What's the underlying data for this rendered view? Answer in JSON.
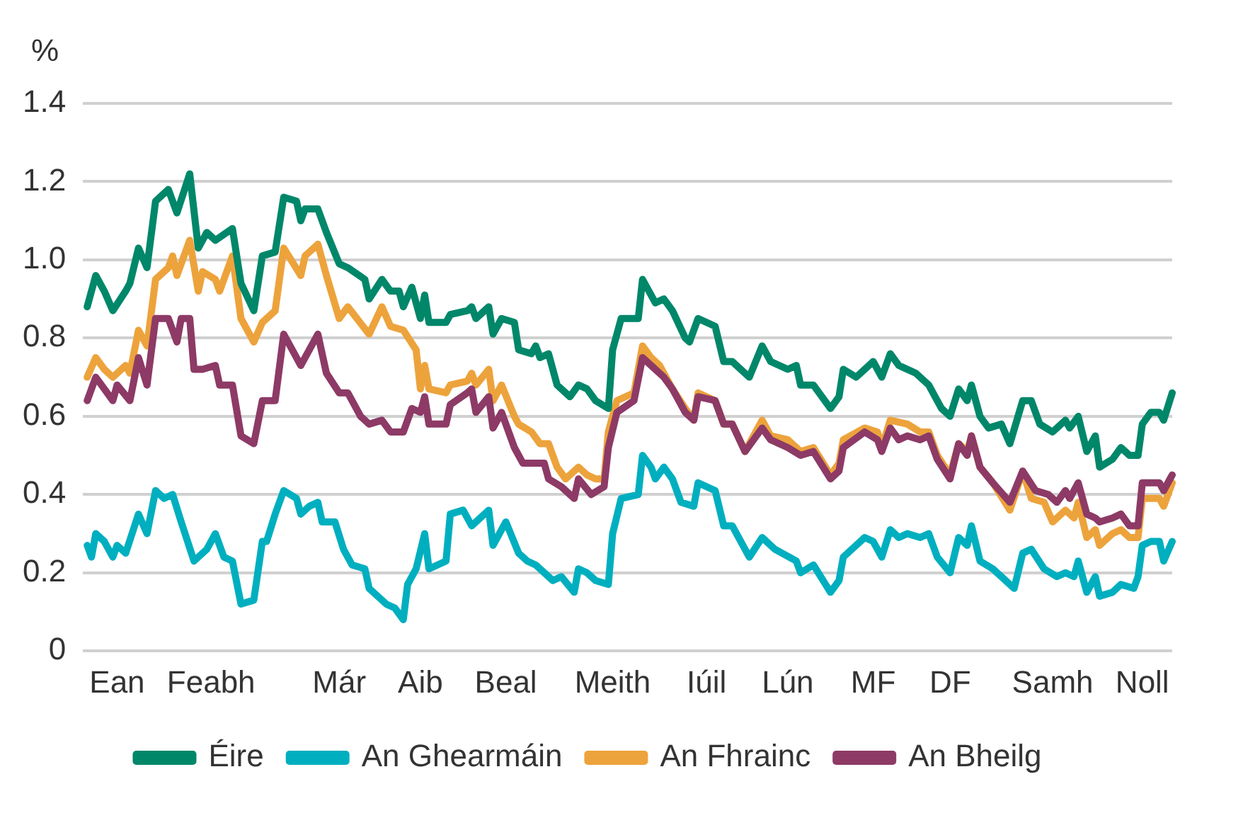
{
  "chart_data": {
    "type": "line",
    "ylabel": "%",
    "categories": [
      null,
      null,
      null,
      null,
      null,
      null,
      null,
      null,
      "Ean",
      null,
      null,
      null,
      null,
      null,
      null,
      null,
      null,
      null,
      null,
      null,
      null,
      null,
      null,
      null,
      null,
      null,
      null,
      null,
      null,
      null,
      "Feabh",
      null,
      null,
      null,
      null,
      null,
      null,
      null,
      null,
      null,
      null,
      null,
      null,
      null,
      null,
      null,
      null,
      null,
      null,
      null,
      null,
      null,
      null,
      null,
      null,
      null,
      null,
      null,
      null,
      null,
      "Már",
      null,
      null,
      null,
      null,
      null,
      null,
      null,
      null,
      null,
      null,
      null,
      null,
      null,
      null,
      null,
      null,
      null,
      null,
      "Aib",
      null,
      null,
      null,
      null,
      null,
      null,
      null,
      null,
      null,
      null,
      null,
      null,
      null,
      null,
      null,
      null,
      null,
      null,
      null,
      "Beal",
      null,
      null,
      null,
      null,
      null,
      null,
      null,
      null,
      null,
      null,
      null,
      null,
      null,
      null,
      null,
      null,
      null,
      null,
      null,
      null,
      null,
      null,
      null,
      null,
      "Meith",
      null,
      null,
      null,
      null,
      null,
      null,
      null,
      null,
      null,
      null,
      null,
      null,
      null,
      null,
      null,
      null,
      null,
      null,
      null,
      null,
      null,
      "Iúil",
      null,
      null,
      null,
      null,
      null,
      null,
      null,
      null,
      null,
      null,
      null,
      null,
      null,
      null,
      null,
      null,
      null,
      null,
      "Lún",
      null,
      null,
      null,
      null,
      null,
      null,
      null,
      null,
      null,
      null,
      null,
      null,
      null,
      null,
      null,
      null,
      null,
      null,
      null,
      "MF",
      null,
      null,
      null,
      null,
      null,
      null,
      null,
      null,
      null,
      null,
      null,
      null,
      null,
      null,
      null,
      null,
      null,
      "DF",
      null,
      null,
      null,
      null,
      null,
      null,
      null,
      null,
      null,
      null,
      null,
      null,
      null,
      null,
      null,
      null,
      null,
      null,
      null,
      null,
      null,
      null,
      null,
      "Samh",
      null,
      null,
      null,
      null,
      null,
      null,
      null,
      null,
      null,
      null,
      null,
      null,
      null,
      null,
      null,
      null,
      null,
      null,
      null,
      null,
      "Noll",
      null,
      null,
      null,
      null,
      null,
      null,
      null
    ],
    "ylim": [
      0,
      1.4
    ],
    "yticks": [
      0,
      0.2,
      0.4,
      0.6,
      0.8,
      {
        "value": 1,
        "label": "1.0"
      },
      1.2,
      1.4
    ],
    "grid": "y",
    "legend": "bottom",
    "marker": "none",
    "line_style": "solid",
    "series": [
      {
        "name": "Éire",
        "color": "#00876a",
        "values": [
          null,
          0.88,
          null,
          0.96,
          null,
          0.92,
          null,
          0.87,
          null,
          null,
          0.92,
          0.94,
          null,
          1.03,
          null,
          0.98,
          null,
          1.15,
          null,
          null,
          1.18,
          null,
          1.12,
          null,
          null,
          1.22,
          null,
          1.03,
          null,
          1.07,
          null,
          1.05,
          null,
          null,
          null,
          1.08,
          null,
          0.94,
          null,
          null,
          0.87,
          null,
          1.01,
          null,
          null,
          1.02,
          null,
          1.16,
          null,
          null,
          1.15,
          1.1,
          1.13,
          null,
          null,
          1.13,
          null,
          1.07,
          null,
          null,
          0.99,
          null,
          0.98,
          null,
          null,
          null,
          0.95,
          0.9,
          null,
          null,
          0.95,
          null,
          0.92,
          null,
          0.92,
          0.88,
          null,
          0.93,
          null,
          0.85,
          0.91,
          0.84,
          null,
          null,
          null,
          0.84,
          0.86,
          null,
          null,
          null,
          0.87,
          0.88,
          0.85,
          null,
          null,
          0.88,
          0.81,
          null,
          0.85,
          null,
          null,
          0.84,
          0.77,
          null,
          null,
          0.76,
          0.78,
          0.75,
          null,
          0.76,
          null,
          0.68,
          null,
          null,
          0.65,
          null,
          0.68,
          null,
          0.67,
          null,
          0.64,
          null,
          null,
          0.62,
          0.77,
          null,
          0.85,
          null,
          null,
          null,
          0.85,
          0.95,
          0.93,
          null,
          0.89,
          null,
          0.9,
          null,
          0.87,
          null,
          null,
          0.8,
          0.79,
          null,
          0.85,
          null,
          null,
          null,
          0.83,
          null,
          0.74,
          null,
          0.74,
          null,
          null,
          null,
          0.7,
          null,
          null,
          0.78,
          null,
          0.74,
          null,
          null,
          null,
          0.72,
          null,
          0.73,
          0.68,
          null,
          null,
          0.68,
          null,
          null,
          null,
          0.62,
          null,
          0.65,
          0.72,
          null,
          null,
          0.7,
          null,
          null,
          null,
          0.74,
          null,
          0.7,
          null,
          0.76,
          null,
          0.73,
          null,
          null,
          null,
          0.71,
          null,
          null,
          0.68,
          null,
          null,
          0.62,
          null,
          0.6,
          null,
          0.67,
          null,
          0.64,
          0.68,
          null,
          0.6,
          null,
          0.57,
          null,
          null,
          0.58,
          null,
          0.53,
          null,
          null,
          0.64,
          null,
          0.64,
          null,
          0.58,
          null,
          null,
          0.56,
          null,
          null,
          0.59,
          0.57,
          null,
          0.6,
          null,
          0.51,
          null,
          0.55,
          0.47,
          null,
          null,
          0.49,
          null,
          0.52,
          null,
          0.5,
          null,
          0.5,
          0.58,
          null,
          0.61,
          null,
          0.61,
          0.59,
          null,
          0.66
        ]
      },
      {
        "name": "An Ghearmáin",
        "color": "#00afbf",
        "values": [
          null,
          0.27,
          0.24,
          0.3,
          null,
          0.28,
          null,
          0.24,
          0.27,
          null,
          0.25,
          null,
          null,
          0.35,
          null,
          0.3,
          null,
          0.41,
          null,
          0.39,
          null,
          0.4,
          null,
          0.33,
          null,
          null,
          0.23,
          null,
          null,
          0.26,
          null,
          0.3,
          null,
          0.24,
          null,
          0.23,
          null,
          0.12,
          null,
          null,
          0.13,
          null,
          0.28,
          0.28,
          null,
          0.35,
          null,
          0.41,
          null,
          null,
          0.39,
          0.35,
          null,
          0.37,
          null,
          0.38,
          0.33,
          null,
          null,
          0.33,
          null,
          0.26,
          null,
          0.22,
          null,
          null,
          0.21,
          0.16,
          null,
          null,
          null,
          0.12,
          null,
          0.11,
          null,
          0.08,
          0.17,
          null,
          0.21,
          null,
          0.3,
          0.21,
          null,
          null,
          null,
          0.23,
          0.35,
          null,
          null,
          0.36,
          null,
          0.32,
          null,
          null,
          null,
          0.36,
          0.27,
          null,
          null,
          0.33,
          null,
          null,
          0.25,
          null,
          0.23,
          null,
          0.22,
          null,
          0.2,
          null,
          0.18,
          null,
          0.19,
          null,
          null,
          0.15,
          0.21,
          null,
          0.2,
          null,
          0.18,
          null,
          null,
          0.17,
          0.3,
          null,
          0.39,
          null,
          null,
          null,
          0.4,
          0.5,
          null,
          0.47,
          0.44,
          null,
          0.47,
          null,
          0.44,
          null,
          0.38,
          null,
          null,
          0.37,
          0.43,
          null,
          null,
          null,
          0.41,
          null,
          0.32,
          null,
          0.32,
          null,
          null,
          null,
          0.24,
          null,
          null,
          0.29,
          null,
          null,
          0.26,
          null,
          null,
          null,
          null,
          0.23,
          0.2,
          null,
          null,
          0.22,
          null,
          null,
          null,
          0.15,
          null,
          0.18,
          0.24,
          null,
          null,
          null,
          null,
          0.29,
          null,
          0.28,
          null,
          0.24,
          null,
          0.31,
          null,
          0.29,
          null,
          0.3,
          null,
          null,
          0.29,
          null,
          0.3,
          null,
          0.24,
          null,
          null,
          0.2,
          null,
          0.29,
          null,
          0.27,
          0.32,
          null,
          0.23,
          null,
          null,
          0.21,
          null,
          null,
          0.18,
          null,
          0.16,
          null,
          0.25,
          null,
          0.26,
          null,
          null,
          0.21,
          null,
          null,
          0.19,
          null,
          0.2,
          null,
          0.19,
          0.23,
          null,
          0.15,
          null,
          0.19,
          0.14,
          null,
          null,
          0.15,
          null,
          0.17,
          null,
          null,
          0.16,
          0.19,
          0.27,
          null,
          0.28,
          null,
          0.28,
          0.23,
          null,
          0.28
        ]
      },
      {
        "name": "An Fhrainc",
        "color": "#eda33c",
        "values": [
          null,
          0.7,
          null,
          0.75,
          null,
          0.72,
          null,
          0.7,
          null,
          null,
          0.73,
          0.71,
          null,
          0.82,
          null,
          0.78,
          null,
          0.95,
          null,
          null,
          0.98,
          1.01,
          0.96,
          null,
          null,
          1.05,
          null,
          0.92,
          0.97,
          null,
          null,
          0.95,
          0.92,
          null,
          null,
          1.01,
          null,
          0.85,
          null,
          null,
          0.79,
          null,
          0.84,
          null,
          null,
          0.87,
          null,
          1.03,
          null,
          null,
          null,
          0.96,
          1.01,
          null,
          null,
          1.04,
          null,
          0.96,
          null,
          null,
          0.85,
          null,
          0.88,
          null,
          null,
          null,
          null,
          0.81,
          null,
          null,
          0.88,
          null,
          0.83,
          null,
          null,
          0.82,
          null,
          null,
          0.77,
          0.67,
          0.73,
          0.67,
          null,
          null,
          null,
          0.66,
          0.68,
          null,
          null,
          null,
          0.69,
          0.71,
          0.68,
          null,
          null,
          0.72,
          0.64,
          null,
          0.68,
          null,
          null,
          0.6,
          0.58,
          null,
          null,
          0.56,
          null,
          0.53,
          null,
          0.53,
          null,
          0.47,
          null,
          0.44,
          null,
          null,
          0.47,
          null,
          0.45,
          null,
          0.44,
          null,
          0.44,
          0.56,
          null,
          0.64,
          null,
          null,
          null,
          0.66,
          null,
          0.78,
          null,
          0.75,
          null,
          0.73,
          0.71,
          null,
          0.67,
          null,
          null,
          0.62,
          null,
          0.59,
          0.66,
          null,
          null,
          null,
          0.64,
          null,
          0.58,
          null,
          0.58,
          null,
          null,
          0.51,
          null,
          null,
          null,
          0.59,
          null,
          0.55,
          null,
          null,
          null,
          0.54,
          null,
          null,
          0.51,
          null,
          null,
          0.52,
          null,
          null,
          null,
          0.45,
          null,
          0.48,
          0.54,
          null,
          null,
          null,
          null,
          0.57,
          null,
          null,
          0.56,
          0.52,
          null,
          0.59,
          null,
          null,
          null,
          0.58,
          null,
          null,
          0.56,
          null,
          0.56,
          null,
          0.5,
          null,
          null,
          0.45,
          null,
          0.53,
          null,
          0.51,
          0.55,
          null,
          0.47,
          null,
          null,
          0.43,
          null,
          null,
          null,
          0.36,
          null,
          null,
          0.46,
          null,
          0.39,
          null,
          null,
          0.38,
          null,
          0.33,
          null,
          null,
          0.36,
          null,
          0.34,
          0.38,
          null,
          0.29,
          null,
          0.31,
          0.27,
          null,
          null,
          0.3,
          null,
          0.31,
          null,
          0.29,
          null,
          0.29,
          0.39,
          null,
          0.39,
          null,
          0.39,
          0.37,
          null,
          0.43
        ]
      },
      {
        "name": "An Bheilg",
        "color": "#8d3a66",
        "values": [
          null,
          0.64,
          null,
          0.7,
          null,
          0.67,
          null,
          0.64,
          0.68,
          null,
          null,
          0.64,
          null,
          0.75,
          null,
          0.68,
          null,
          0.85,
          null,
          null,
          0.85,
          null,
          0.79,
          0.85,
          null,
          0.85,
          0.72,
          null,
          0.72,
          null,
          null,
          0.73,
          0.68,
          null,
          null,
          0.68,
          null,
          0.55,
          null,
          null,
          0.53,
          null,
          0.64,
          null,
          null,
          0.64,
          null,
          0.81,
          null,
          null,
          null,
          0.73,
          null,
          0.77,
          null,
          0.81,
          null,
          0.71,
          null,
          null,
          0.66,
          null,
          0.66,
          null,
          null,
          0.6,
          null,
          0.58,
          null,
          null,
          0.59,
          null,
          0.56,
          null,
          null,
          0.56,
          null,
          0.62,
          null,
          0.61,
          0.65,
          0.58,
          null,
          null,
          null,
          0.58,
          0.63,
          null,
          null,
          null,
          0.66,
          0.67,
          0.61,
          null,
          null,
          0.65,
          0.57,
          null,
          0.61,
          null,
          null,
          0.52,
          null,
          0.48,
          null,
          null,
          0.48,
          null,
          0.48,
          0.44,
          null,
          null,
          0.42,
          null,
          null,
          0.39,
          0.44,
          null,
          null,
          0.4,
          null,
          null,
          0.42,
          0.52,
          null,
          0.61,
          null,
          null,
          null,
          0.64,
          null,
          0.75,
          null,
          0.73,
          null,
          null,
          0.7,
          null,
          0.67,
          null,
          null,
          0.61,
          null,
          0.59,
          0.65,
          null,
          null,
          null,
          0.64,
          null,
          0.58,
          null,
          0.58,
          null,
          null,
          0.51,
          null,
          null,
          null,
          0.57,
          null,
          0.54,
          null,
          null,
          null,
          0.52,
          null,
          null,
          0.5,
          null,
          null,
          0.51,
          null,
          null,
          null,
          0.44,
          null,
          0.46,
          0.52,
          null,
          null,
          null,
          null,
          0.56,
          null,
          null,
          0.54,
          0.51,
          null,
          0.57,
          null,
          0.54,
          null,
          0.55,
          null,
          null,
          0.54,
          null,
          0.55,
          null,
          0.49,
          null,
          null,
          0.44,
          null,
          0.53,
          null,
          0.5,
          0.55,
          null,
          0.47,
          null,
          null,
          0.43,
          null,
          null,
          null,
          0.38,
          null,
          null,
          0.46,
          null,
          null,
          0.41,
          null,
          null,
          0.4,
          null,
          0.38,
          null,
          0.41,
          0.39,
          null,
          0.43,
          null,
          0.35,
          null,
          0.34,
          0.33,
          null,
          null,
          0.34,
          null,
          0.35,
          null,
          0.32,
          null,
          0.32,
          0.43,
          null,
          null,
          null,
          0.43,
          0.41,
          null,
          0.45
        ]
      }
    ]
  }
}
